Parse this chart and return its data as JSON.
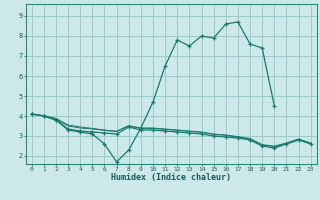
{
  "xlabel": "Humidex (Indice chaleur)",
  "bg_color": "#cce8e8",
  "grid_color": "#99cccc",
  "line_color": "#1a7a6e",
  "x_ticks": [
    0,
    1,
    2,
    3,
    4,
    5,
    6,
    7,
    8,
    9,
    10,
    11,
    12,
    13,
    14,
    15,
    16,
    17,
    18,
    19,
    20,
    21,
    22,
    23
  ],
  "y_ticks": [
    2,
    3,
    4,
    5,
    6,
    7,
    8,
    9
  ],
  "ylim": [
    1.6,
    9.6
  ],
  "xlim": [
    -0.5,
    23.5
  ],
  "lines": [
    {
      "x": [
        0,
        1,
        2,
        3,
        4,
        5,
        6,
        7,
        8,
        9,
        10,
        11,
        12,
        13,
        14,
        15,
        16,
        17,
        18,
        19,
        20
      ],
      "y": [
        4.1,
        4.0,
        3.8,
        3.3,
        3.2,
        3.1,
        2.6,
        1.7,
        2.3,
        3.4,
        4.7,
        6.5,
        7.8,
        7.5,
        8.0,
        7.9,
        8.6,
        8.7,
        7.6,
        7.4,
        4.5
      ],
      "marker": true
    },
    {
      "x": [
        0,
        1,
        2,
        3,
        4,
        5,
        6,
        7,
        8,
        9,
        10,
        11,
        12,
        13,
        14,
        15,
        16,
        17,
        18,
        19,
        20,
        21,
        22,
        23
      ],
      "y": [
        4.1,
        4.0,
        3.8,
        3.35,
        3.25,
        3.2,
        3.15,
        3.1,
        3.45,
        3.3,
        3.3,
        3.25,
        3.2,
        3.15,
        3.1,
        3.0,
        2.95,
        2.9,
        2.8,
        2.5,
        2.4,
        2.6,
        2.8,
        2.6
      ],
      "marker": true
    },
    {
      "x": [
        0,
        1,
        2,
        3,
        4,
        5,
        6,
        7,
        8,
        9,
        10,
        11,
        12,
        13,
        14,
        15,
        16,
        17,
        18,
        19,
        20,
        21,
        22,
        23
      ],
      "y": [
        4.1,
        4.0,
        3.85,
        3.5,
        3.4,
        3.35,
        3.28,
        3.22,
        3.5,
        3.38,
        3.38,
        3.33,
        3.28,
        3.23,
        3.18,
        3.08,
        3.03,
        2.95,
        2.85,
        2.55,
        2.47,
        2.63,
        2.83,
        2.63
      ],
      "marker": false
    },
    {
      "x": [
        0,
        1,
        2,
        3,
        4,
        5,
        6,
        7,
        8,
        9,
        10,
        11,
        12,
        13,
        14,
        15,
        16,
        17,
        18,
        19,
        20,
        21,
        22,
        23
      ],
      "y": [
        4.1,
        4.02,
        3.88,
        3.55,
        3.45,
        3.38,
        3.3,
        3.24,
        3.52,
        3.4,
        3.4,
        3.35,
        3.3,
        3.25,
        3.2,
        3.1,
        3.05,
        2.97,
        2.87,
        2.57,
        2.49,
        2.65,
        2.85,
        2.65
      ],
      "marker": false
    }
  ]
}
